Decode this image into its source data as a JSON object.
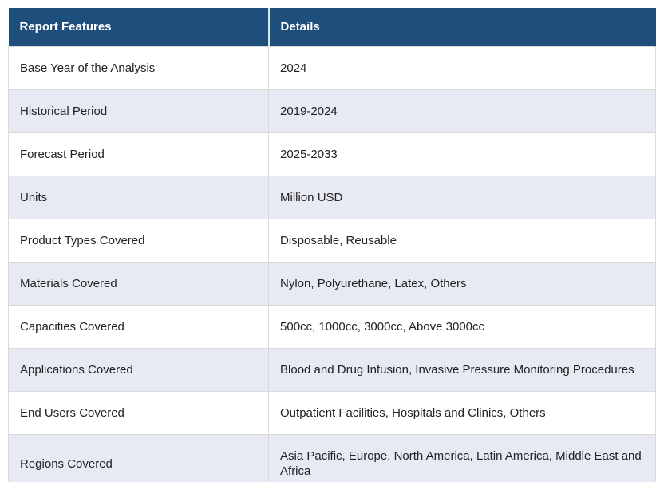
{
  "table": {
    "columns": [
      {
        "label": "Report Features"
      },
      {
        "label": "Details"
      }
    ],
    "rows": [
      {
        "feature": "Base Year of the Analysis",
        "details": "2024"
      },
      {
        "feature": "Historical Period",
        "details": "2019-2024"
      },
      {
        "feature": "Forecast Period",
        "details": "2025-2033"
      },
      {
        "feature": "Units",
        "details": "Million USD"
      },
      {
        "feature": "Product Types Covered",
        "details": "Disposable, Reusable"
      },
      {
        "feature": "Materials Covered",
        "details": "Nylon, Polyurethane, Latex, Others"
      },
      {
        "feature": "Capacities Covered",
        "details": "500cc, 1000cc, 3000cc, Above 3000cc"
      },
      {
        "feature": "Applications Covered",
        "details": "Blood and Drug Infusion, Invasive Pressure Monitoring Procedures"
      },
      {
        "feature": "End Users Covered",
        "details": "Outpatient Facilities, Hospitals and Clinics, Others"
      },
      {
        "feature": "Regions Covered",
        "details": "Asia Pacific, Europe, North America, Latin America, Middle East and Africa"
      }
    ],
    "colors": {
      "header_bg": "#1E4F7C",
      "header_text": "#FFFFFF",
      "row_bg": "#FFFFFF",
      "row_alt_bg": "#E7E9F3",
      "body_text": "#222222",
      "border": "#D9D9D9"
    }
  }
}
